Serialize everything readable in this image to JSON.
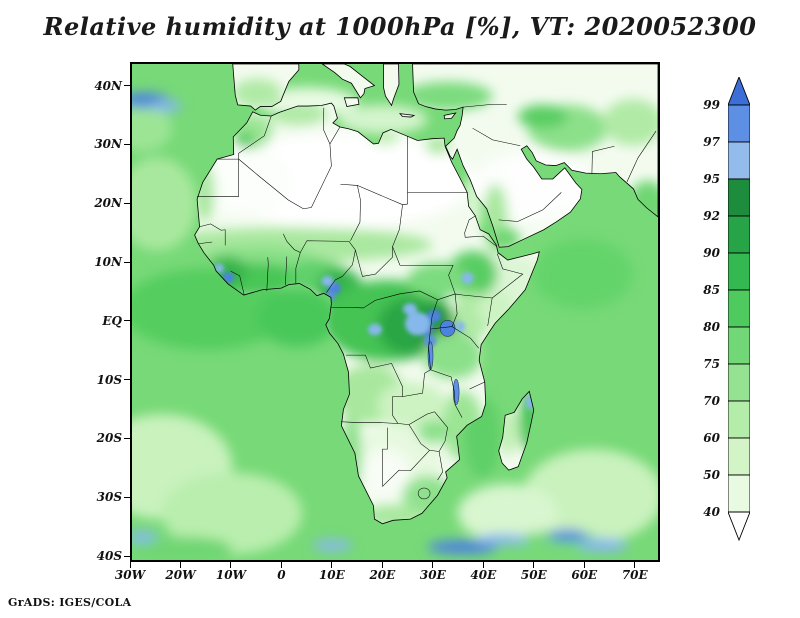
{
  "title": "Relative humidity at 1000hPa [%], VT: 2020052300",
  "attribution": "GrADS: IGES/COLA",
  "axes": {
    "lat_ticks": [
      {
        "label": "40N",
        "deg": 40
      },
      {
        "label": "30N",
        "deg": 30
      },
      {
        "label": "20N",
        "deg": 20
      },
      {
        "label": "10N",
        "deg": 10
      },
      {
        "label": "EQ",
        "deg": 0
      },
      {
        "label": "10S",
        "deg": -10
      },
      {
        "label": "20S",
        "deg": -20
      },
      {
        "label": "30S",
        "deg": -30
      },
      {
        "label": "40S",
        "deg": -40
      }
    ],
    "lon_ticks": [
      {
        "label": "30W",
        "deg": -30
      },
      {
        "label": "20W",
        "deg": -20
      },
      {
        "label": "10W",
        "deg": -10
      },
      {
        "label": "0",
        "deg": 0
      },
      {
        "label": "10E",
        "deg": 10
      },
      {
        "label": "20E",
        "deg": 20
      },
      {
        "label": "30E",
        "deg": 30
      },
      {
        "label": "40E",
        "deg": 40
      },
      {
        "label": "50E",
        "deg": 50
      },
      {
        "label": "60E",
        "deg": 60
      },
      {
        "label": "70E",
        "deg": 70
      }
    ]
  },
  "colorbar": {
    "labels": [
      "99",
      "97",
      "95",
      "92",
      "90",
      "85",
      "80",
      "75",
      "70",
      "60",
      "50",
      "40"
    ],
    "colors_top_to_bottom": [
      "#3c6ed8",
      "#5d8fe4",
      "#93bbec",
      "#1d8c3c",
      "#27a348",
      "#33b852",
      "#4fca5f",
      "#72d877",
      "#95e392",
      "#b4ecaa",
      "#d2f4c6",
      "#e9fae2",
      "#ffffff"
    ]
  },
  "chart_data": {
    "type": "heatmap",
    "title": "Relative humidity at 1000hPa [%], VT: 2020052300",
    "variable": "Relative humidity",
    "pressure_level_hPa": 1000,
    "units": "%",
    "valid_time": "2020052300",
    "region": "Africa and surrounding oceans",
    "projection": "latlon",
    "lon_range_deg": [
      -30,
      75
    ],
    "lat_range_deg": [
      -41,
      44
    ],
    "x_tick_labels": [
      "30W",
      "20W",
      "10W",
      "0",
      "10E",
      "20E",
      "30E",
      "40E",
      "50E",
      "60E",
      "70E"
    ],
    "y_tick_labels": [
      "40N",
      "30N",
      "20N",
      "10N",
      "EQ",
      "10S",
      "20S",
      "30S",
      "40S"
    ],
    "colorbar_levels": [
      40,
      50,
      60,
      70,
      75,
      80,
      85,
      90,
      92,
      95,
      97,
      99
    ],
    "colorbar_colors_low_to_high": [
      "#ffffff",
      "#e9fae2",
      "#d2f4c6",
      "#b4ecaa",
      "#95e392",
      "#72d877",
      "#4fca5f",
      "#33b852",
      "#27a348",
      "#1d8c3c",
      "#93bbec",
      "#5d8fe4",
      "#3c6ed8"
    ],
    "legend_position": "right",
    "grid": false,
    "features": [
      {
        "area": "Sahara Desert and Arabian Peninsula interior",
        "value_percent": "< 40"
      },
      {
        "area": "Congo Basin, Great Lakes and Cameroon highlands",
        "value_percent": "90-99 with local spots > 95 (blue)"
      },
      {
        "area": "Guinea coast of West Africa",
        "value_percent": "85-99"
      },
      {
        "area": "Sahel transition band",
        "value_percent": "50-75"
      },
      {
        "area": "Tropical Atlantic and equatorial Indian Ocean",
        "value_percent": "75-85"
      },
      {
        "area": "Subtropical South Atlantic / South Indian Ocean",
        "value_percent": "50-70"
      },
      {
        "area": "Kalahari and southern Africa interior",
        "value_percent": "40-60"
      },
      {
        "area": "Mediterranean coast and Horn of Africa",
        "value_percent": "40-60"
      },
      {
        "area": "Madagascar east coast",
        "value_percent": "85-95"
      },
      {
        "area": "Midlatitude storm tracks (NE Atlantic near 38N, Southern Ocean near 38S)",
        "value_percent": "95 to > 99 (blue streaks)"
      }
    ]
  }
}
